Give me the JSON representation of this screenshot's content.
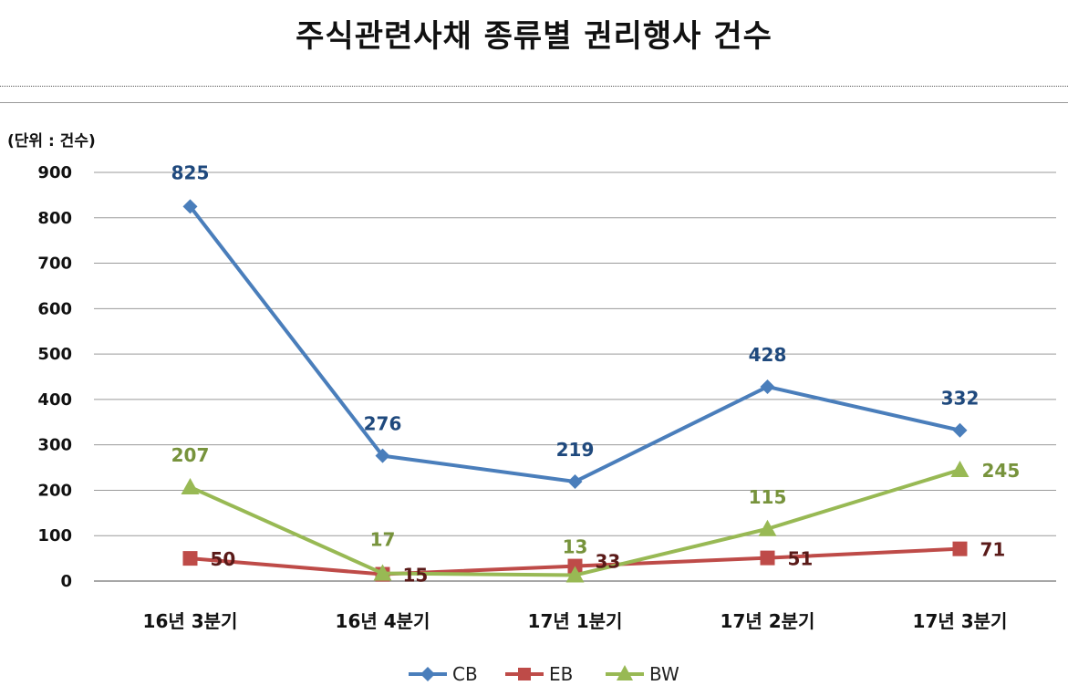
{
  "title": "주식관련사채 종류별 권리행사 건수",
  "unit_label": "(단위 : 건수)",
  "chart_data": {
    "type": "line",
    "title": "주식관련사채 종류별 권리행사 건수",
    "categories": [
      "16년 3분기",
      "16년 4분기",
      "17년 1분기",
      "17년 2분기",
      "17년 3분기"
    ],
    "ylim": [
      0,
      900
    ],
    "yticks": [
      0,
      100,
      200,
      300,
      400,
      500,
      600,
      700,
      800,
      900
    ],
    "grid": true,
    "legend": "bottom",
    "series": [
      {
        "name": "CB",
        "color": "#4a7ebb",
        "marker": "diamond",
        "values": [
          825,
          276,
          219,
          428,
          332
        ]
      },
      {
        "name": "EB",
        "color": "#be4b48",
        "marker": "square",
        "values": [
          50,
          15,
          33,
          51,
          71
        ]
      },
      {
        "name": "BW",
        "color": "#98b954",
        "marker": "triangle",
        "values": [
          207,
          17,
          13,
          115,
          245
        ]
      }
    ]
  }
}
